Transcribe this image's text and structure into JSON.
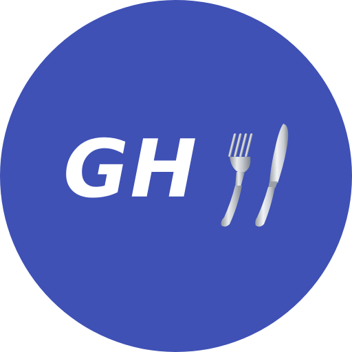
{
  "logo": {
    "monogram": "GH",
    "background_color": "#3f51b5",
    "text_color": "#ffffff",
    "icon": "fork-and-knife-icon"
  }
}
